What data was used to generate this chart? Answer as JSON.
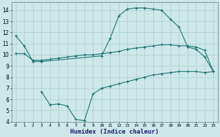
{
  "xlabel": "Humidex (Indice chaleur)",
  "background_color": "#cce8e8",
  "line_color": "#1a7070",
  "grid_color": "#aacccc",
  "xlim": [
    -0.5,
    23.5
  ],
  "ylim": [
    4,
    14.7
  ],
  "yticks": [
    4,
    5,
    6,
    7,
    8,
    9,
    10,
    11,
    12,
    13,
    14
  ],
  "xticks": [
    0,
    1,
    2,
    3,
    4,
    5,
    6,
    7,
    8,
    9,
    10,
    11,
    12,
    13,
    14,
    15,
    16,
    17,
    18,
    19,
    20,
    21,
    22,
    23
  ],
  "curve1_x": [
    0,
    1,
    2,
    3,
    10,
    11,
    12,
    13,
    14,
    15,
    16,
    17,
    18,
    19,
    20,
    21,
    22,
    23
  ],
  "curve1_y": [
    11.7,
    10.8,
    9.4,
    9.4,
    9.9,
    11.5,
    13.5,
    14.1,
    14.2,
    14.2,
    14.1,
    14.0,
    13.2,
    12.5,
    10.7,
    10.5,
    9.8,
    8.5
  ],
  "curve2_x": [
    0,
    1,
    2,
    3,
    4,
    5,
    6,
    7,
    8,
    9,
    10,
    11,
    12,
    13,
    14,
    15,
    16,
    17,
    18,
    19,
    20,
    21,
    22,
    23
  ],
  "curve2_y": [
    10.1,
    10.1,
    9.5,
    9.5,
    9.6,
    9.7,
    9.8,
    9.9,
    10.0,
    10.0,
    10.1,
    10.2,
    10.3,
    10.5,
    10.6,
    10.7,
    10.8,
    10.9,
    10.9,
    10.8,
    10.8,
    10.7,
    10.4,
    8.5
  ],
  "curve3_x": [
    3,
    4,
    5,
    6,
    7,
    8,
    9,
    10,
    11,
    12,
    13,
    14,
    15,
    16,
    17,
    18,
    19,
    20,
    21,
    22,
    23
  ],
  "curve3_y": [
    6.7,
    5.5,
    5.6,
    5.4,
    4.2,
    4.1,
    6.5,
    7.0,
    7.2,
    7.4,
    7.6,
    7.8,
    8.0,
    8.2,
    8.3,
    8.4,
    8.5,
    8.5,
    8.5,
    8.4,
    8.5
  ]
}
